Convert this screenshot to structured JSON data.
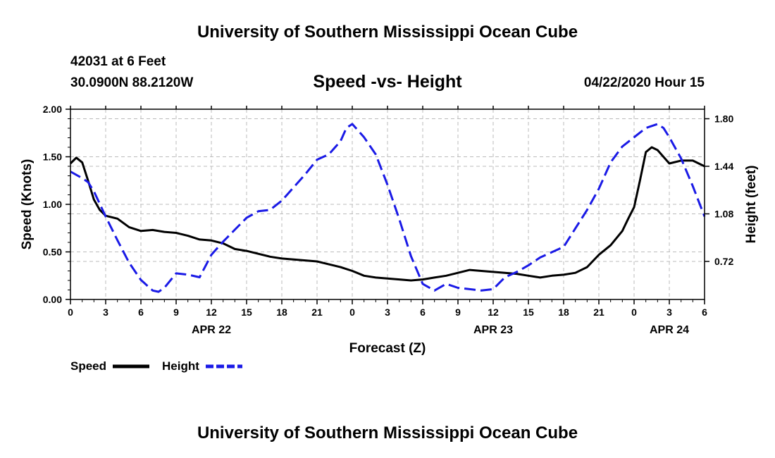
{
  "header": {
    "title": "University of Southern Mississippi Ocean Cube",
    "station": "42031 at 6 Feet",
    "location": "30.0900N 88.2120W",
    "chart_title": "Speed -vs- Height",
    "datetime": "04/22/2020 Hour 15"
  },
  "footer": {
    "title": "University of Southern Mississippi Ocean Cube"
  },
  "colors": {
    "speed": "#000000",
    "height": "#1a1ae6",
    "grid": "#bbbbbb"
  },
  "chart_data": {
    "type": "line",
    "title": "Speed -vs- Height",
    "xlabel": "Forecast (Z)",
    "ylabel": "Speed (Knots)",
    "y2label": "Height (feet)",
    "x_unit": "hours since 04/22 00Z",
    "xlim": [
      0,
      54
    ],
    "ylim": [
      0,
      2.0
    ],
    "y2lim": [
      0.432,
      1.872
    ],
    "x_tick_values": [
      0,
      3,
      6,
      9,
      12,
      15,
      18,
      21,
      24,
      27,
      30,
      33,
      36,
      39,
      42,
      45,
      48,
      51,
      54
    ],
    "x_tick_labels": [
      "0",
      "3",
      "6",
      "9",
      "12",
      "15",
      "18",
      "21",
      "0",
      "3",
      "6",
      "9",
      "12",
      "15",
      "18",
      "21",
      "0",
      "3",
      "6"
    ],
    "day_labels": [
      {
        "x": 12,
        "label": "APR 22"
      },
      {
        "x": 36,
        "label": "APR 23"
      },
      {
        "x": 51,
        "label": "APR 24"
      }
    ],
    "y_ticks": [
      0.0,
      0.5,
      1.0,
      1.5,
      2.0
    ],
    "y_tick_labels": [
      "0.00",
      "0.50",
      "1.00",
      "1.50",
      "2.00"
    ],
    "y2_ticks": [
      0.72,
      1.08,
      1.44,
      1.8
    ],
    "y2_tick_labels": [
      "0.72",
      "1.08",
      "1.44",
      "1.80"
    ],
    "grid": true,
    "legend": [
      {
        "name": "Speed",
        "style": "solid"
      },
      {
        "name": "Height",
        "style": "dashed"
      }
    ],
    "series": [
      {
        "name": "Speed",
        "axis": "left",
        "style": "solid",
        "x": [
          0,
          0.5,
          1,
          1.5,
          2,
          2.5,
          3,
          4,
          5,
          6,
          7,
          8,
          9,
          10,
          11,
          12,
          13,
          14,
          15,
          16,
          17,
          18,
          19,
          20,
          21,
          22,
          23,
          24,
          25,
          26,
          27,
          28,
          29,
          30,
          31,
          32,
          33,
          34,
          35,
          36,
          37,
          38,
          39,
          40,
          41,
          42,
          43,
          44,
          45,
          46,
          47,
          47.5,
          48,
          48.5,
          49,
          49.5,
          50,
          51,
          52,
          53,
          54
        ],
        "values": [
          1.43,
          1.49,
          1.44,
          1.25,
          1.05,
          0.94,
          0.88,
          0.85,
          0.76,
          0.72,
          0.73,
          0.71,
          0.7,
          0.67,
          0.63,
          0.62,
          0.59,
          0.53,
          0.51,
          0.48,
          0.45,
          0.43,
          0.42,
          0.41,
          0.4,
          0.37,
          0.34,
          0.3,
          0.25,
          0.23,
          0.22,
          0.21,
          0.2,
          0.21,
          0.23,
          0.25,
          0.28,
          0.31,
          0.3,
          0.29,
          0.28,
          0.27,
          0.25,
          0.23,
          0.25,
          0.26,
          0.28,
          0.34,
          0.47,
          0.57,
          0.72,
          0.85,
          0.97,
          1.25,
          1.55,
          1.6,
          1.57,
          1.43,
          1.46,
          1.46,
          1.4
        ]
      },
      {
        "name": "Height",
        "axis": "right",
        "style": "dashed",
        "x": [
          0,
          1,
          1.5,
          2,
          3,
          4,
          5,
          6,
          7,
          7.5,
          8,
          9,
          10,
          11,
          12,
          13,
          14,
          15,
          16,
          17,
          18,
          19,
          20,
          21,
          22,
          23,
          23.5,
          24,
          25,
          26,
          27,
          28,
          29,
          30,
          31,
          32,
          33,
          34,
          35,
          36,
          37,
          38,
          39,
          40,
          41,
          42,
          43,
          44,
          45,
          46,
          47,
          48,
          49,
          50,
          50.5,
          51,
          52,
          53,
          54
        ],
        "values": [
          1.4,
          1.35,
          1.32,
          1.25,
          1.06,
          0.88,
          0.71,
          0.58,
          0.5,
          0.49,
          0.52,
          0.63,
          0.62,
          0.6,
          0.77,
          0.87,
          0.96,
          1.05,
          1.1,
          1.11,
          1.18,
          1.28,
          1.38,
          1.49,
          1.53,
          1.63,
          1.73,
          1.76,
          1.66,
          1.53,
          1.3,
          1.04,
          0.76,
          0.55,
          0.5,
          0.55,
          0.52,
          0.51,
          0.5,
          0.51,
          0.6,
          0.64,
          0.69,
          0.75,
          0.79,
          0.83,
          0.97,
          1.11,
          1.27,
          1.47,
          1.59,
          1.66,
          1.73,
          1.76,
          1.73,
          1.66,
          1.5,
          1.29,
          1.06
        ]
      }
    ]
  }
}
